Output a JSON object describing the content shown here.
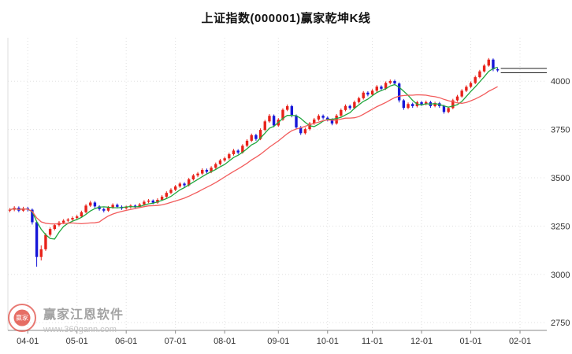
{
  "title": "上证指数(000001)赢家乾坤K线",
  "watermark": {
    "name": "赢家江恩软件",
    "url": "www.360gann.com",
    "logo_text": "赢家"
  },
  "chart_data": {
    "type": "candlestick",
    "title": "上证指数(000001)赢家乾坤K线",
    "symbol": "上证指数",
    "code": "000001",
    "grid": true,
    "legend_position": "none",
    "ylim": [
      2710,
      4225
    ],
    "y_ticks": [
      4000,
      3750,
      3500,
      3250,
      3000,
      2750
    ],
    "x_ticks": [
      {
        "label": "04-01",
        "index": 4
      },
      {
        "label": "05-01",
        "index": 15
      },
      {
        "label": "06-01",
        "index": 26
      },
      {
        "label": "07-01",
        "index": 37
      },
      {
        "label": "08-01",
        "index": 48
      },
      {
        "label": "09-01",
        "index": 60
      },
      {
        "label": "10-01",
        "index": 71
      },
      {
        "label": "11-01",
        "index": 81
      },
      {
        "label": "12-01",
        "index": 92
      },
      {
        "label": "01-01",
        "index": 103
      },
      {
        "label": "02-01",
        "index": 114
      }
    ],
    "ma_lines": [
      {
        "name": "ma-fast",
        "window": 5,
        "color": "#1fa63c"
      },
      {
        "name": "ma-slow",
        "window": 15,
        "color": "#f25c5c"
      }
    ],
    "price_lines": [
      4066,
      4044
    ],
    "colors": {
      "up": "#e8221a",
      "down": "#1717d8",
      "grid": "#e0e0e0",
      "axis": "#8a8a8a",
      "label": "#333333",
      "price_line": "#222222"
    },
    "candles": [
      [
        3330,
        3343,
        3322,
        3335
      ],
      [
        3335,
        3353,
        3327,
        3345
      ],
      [
        3345,
        3352,
        3322,
        3330
      ],
      [
        3330,
        3350,
        3324,
        3342
      ],
      [
        3342,
        3350,
        3326,
        3335
      ],
      [
        3335,
        3341,
        3258,
        3270
      ],
      [
        3270,
        3275,
        3040,
        3090
      ],
      [
        3090,
        3150,
        3072,
        3130
      ],
      [
        3130,
        3214,
        3122,
        3205
      ],
      [
        3205,
        3243,
        3196,
        3235
      ],
      [
        3235,
        3262,
        3228,
        3255
      ],
      [
        3255,
        3276,
        3248,
        3268
      ],
      [
        3268,
        3286,
        3261,
        3278
      ],
      [
        3278,
        3292,
        3270,
        3284
      ],
      [
        3284,
        3300,
        3277,
        3292
      ],
      [
        3292,
        3308,
        3285,
        3300
      ],
      [
        3300,
        3330,
        3294,
        3322
      ],
      [
        3322,
        3364,
        3316,
        3356
      ],
      [
        3356,
        3381,
        3349,
        3372
      ],
      [
        3372,
        3379,
        3344,
        3352
      ],
      [
        3352,
        3358,
        3330,
        3338
      ],
      [
        3338,
        3345,
        3321,
        3330
      ],
      [
        3330,
        3354,
        3324,
        3346
      ],
      [
        3346,
        3368,
        3340,
        3360
      ],
      [
        3360,
        3367,
        3342,
        3350
      ],
      [
        3350,
        3357,
        3334,
        3342
      ],
      [
        3342,
        3356,
        3336,
        3348
      ],
      [
        3348,
        3363,
        3341,
        3356
      ],
      [
        3356,
        3362,
        3343,
        3350
      ],
      [
        3350,
        3370,
        3344,
        3362
      ],
      [
        3362,
        3384,
        3356,
        3376
      ],
      [
        3376,
        3390,
        3369,
        3382
      ],
      [
        3382,
        3388,
        3363,
        3371
      ],
      [
        3371,
        3394,
        3365,
        3386
      ],
      [
        3386,
        3410,
        3380,
        3402
      ],
      [
        3402,
        3430,
        3396,
        3422
      ],
      [
        3422,
        3446,
        3415,
        3438
      ],
      [
        3438,
        3463,
        3431,
        3455
      ],
      [
        3455,
        3478,
        3448,
        3470
      ],
      [
        3470,
        3477,
        3452,
        3461
      ],
      [
        3461,
        3500,
        3455,
        3492
      ],
      [
        3492,
        3520,
        3486,
        3512
      ],
      [
        3512,
        3530,
        3504,
        3522
      ],
      [
        3522,
        3549,
        3515,
        3541
      ],
      [
        3541,
        3548,
        3522,
        3531
      ],
      [
        3531,
        3560,
        3524,
        3552
      ],
      [
        3552,
        3579,
        3545,
        3571
      ],
      [
        3571,
        3598,
        3564,
        3590
      ],
      [
        3590,
        3609,
        3583,
        3601
      ],
      [
        3601,
        3630,
        3594,
        3622
      ],
      [
        3622,
        3649,
        3615,
        3641
      ],
      [
        3641,
        3648,
        3622,
        3631
      ],
      [
        3631,
        3674,
        3625,
        3666
      ],
      [
        3666,
        3700,
        3659,
        3692
      ],
      [
        3692,
        3729,
        3685,
        3721
      ],
      [
        3721,
        3728,
        3692,
        3701
      ],
      [
        3701,
        3756,
        3695,
        3748
      ],
      [
        3748,
        3800,
        3741,
        3792
      ],
      [
        3792,
        3830,
        3785,
        3821
      ],
      [
        3821,
        3828,
        3762,
        3771
      ],
      [
        3771,
        3809,
        3764,
        3801
      ],
      [
        3801,
        3860,
        3795,
        3852
      ],
      [
        3852,
        3880,
        3845,
        3871
      ],
      [
        3871,
        3878,
        3813,
        3822
      ],
      [
        3822,
        3828,
        3752,
        3761
      ],
      [
        3761,
        3768,
        3722,
        3731
      ],
      [
        3731,
        3760,
        3724,
        3752
      ],
      [
        3752,
        3789,
        3745,
        3781
      ],
      [
        3781,
        3810,
        3774,
        3802
      ],
      [
        3802,
        3829,
        3795,
        3821
      ],
      [
        3821,
        3828,
        3802,
        3811
      ],
      [
        3811,
        3818,
        3792,
        3801
      ],
      [
        3801,
        3808,
        3772,
        3781
      ],
      [
        3781,
        3830,
        3775,
        3822
      ],
      [
        3822,
        3859,
        3815,
        3851
      ],
      [
        3851,
        3880,
        3844,
        3872
      ],
      [
        3872,
        3879,
        3852,
        3861
      ],
      [
        3861,
        3900,
        3855,
        3892
      ],
      [
        3892,
        3920,
        3885,
        3912
      ],
      [
        3912,
        3949,
        3905,
        3941
      ],
      [
        3941,
        3948,
        3922,
        3931
      ],
      [
        3931,
        3959,
        3925,
        3951
      ],
      [
        3951,
        3980,
        3944,
        3972
      ],
      [
        3972,
        3979,
        3952,
        3961
      ],
      [
        3961,
        3999,
        3955,
        3991
      ],
      [
        3991,
        4009,
        3984,
        4001
      ],
      [
        4001,
        4008,
        3979,
        3988
      ],
      [
        3988,
        3994,
        3890,
        3901
      ],
      [
        3901,
        3908,
        3852,
        3862
      ],
      [
        3862,
        3890,
        3855,
        3882
      ],
      [
        3882,
        3889,
        3862,
        3871
      ],
      [
        3871,
        3899,
        3864,
        3891
      ],
      [
        3891,
        3898,
        3872,
        3881
      ],
      [
        3881,
        3900,
        3875,
        3892
      ],
      [
        3892,
        3899,
        3862,
        3871
      ],
      [
        3871,
        3894,
        3865,
        3886
      ],
      [
        3886,
        3893,
        3862,
        3871
      ],
      [
        3871,
        3878,
        3832,
        3841
      ],
      [
        3841,
        3869,
        3834,
        3861
      ],
      [
        3861,
        3909,
        3855,
        3901
      ],
      [
        3901,
        3929,
        3894,
        3921
      ],
      [
        3921,
        3959,
        3915,
        3951
      ],
      [
        3951,
        3979,
        3944,
        3971
      ],
      [
        3971,
        3999,
        3965,
        3991
      ],
      [
        3991,
        4029,
        3985,
        4021
      ],
      [
        4021,
        4059,
        4015,
        4051
      ],
      [
        4051,
        4089,
        4045,
        4081
      ],
      [
        4081,
        4120,
        4075,
        4112
      ],
      [
        4112,
        4118,
        4052,
        4062
      ],
      [
        4062,
        4070,
        4048,
        4056
      ]
    ]
  }
}
